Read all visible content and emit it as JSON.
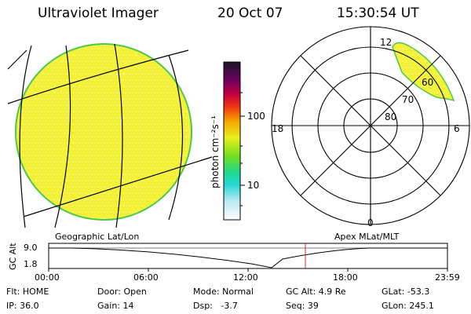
{
  "header": {
    "instrument": "Ultraviolet Imager",
    "date": "20 Oct 07",
    "time": "15:30:54 UT"
  },
  "colorbar": {
    "unit_label": "photon cm⁻²s⁻¹",
    "ticks": [
      "100",
      "10"
    ]
  },
  "polar_plot": {
    "mlt_labels": {
      "top": "12",
      "bottom": "0",
      "left": "18",
      "right": "6"
    },
    "lat_labels": [
      "60",
      "70",
      "80"
    ]
  },
  "left_panel_caption": "Geographic Lat/Lon",
  "right_panel_caption": "Apex MLat/MLT",
  "altitude_strip": {
    "axis_label": "GC Alt",
    "y_ticks": [
      "9.0",
      "1.8"
    ],
    "x_ticks": [
      "00:00",
      "06:00",
      "12:00",
      "18:00",
      "23:59"
    ],
    "marker_color": "#c03030"
  },
  "status": {
    "rows": [
      [
        "Flt: HOME",
        "Door: Open",
        "Mode: Normal",
        "GC Alt: 4.9 Re",
        "GLat: -53.3"
      ],
      [
        "IP: 36.0",
        "Gain: 14",
        "Dsp:   -3.7",
        "Seq: 39",
        "GLon: 245.1"
      ]
    ]
  },
  "colors": {
    "earth_fill": "#f2f028",
    "earth_edge": "#4cc84c",
    "grid": "#000000"
  }
}
